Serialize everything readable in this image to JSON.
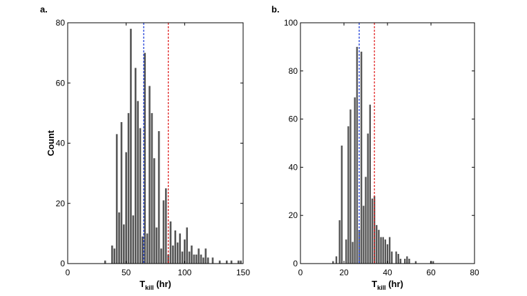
{
  "chart_data": [
    {
      "type": "bar",
      "panel_label": "a.",
      "xlabel_main": "T",
      "xlabel_sub": "kill",
      "xlabel_unit": " (hr)",
      "ylabel": "Count",
      "xlim": [
        0,
        150
      ],
      "ylim": [
        0,
        80
      ],
      "xticks": [
        0,
        50,
        100,
        150
      ],
      "yticks": [
        0,
        20,
        40,
        60,
        80
      ],
      "bar_color": "#555555",
      "grid": false,
      "x": [
        32,
        38,
        40,
        42,
        44,
        46,
        48,
        50,
        52,
        54,
        56,
        58,
        60,
        62,
        64,
        66,
        68,
        70,
        72,
        74,
        76,
        78,
        80,
        82,
        84,
        86,
        88,
        90,
        92,
        94,
        96,
        98,
        100,
        102,
        104,
        106,
        108,
        110,
        112,
        114,
        116,
        118,
        120,
        124,
        130,
        136,
        140,
        146,
        148
      ],
      "values": [
        1,
        6,
        5,
        43,
        17,
        47,
        13,
        37,
        50,
        78,
        16,
        65,
        54,
        45,
        9,
        70,
        10,
        59,
        50,
        35,
        12,
        44,
        5,
        21,
        25,
        3,
        14,
        6,
        11,
        7,
        10,
        4,
        8,
        12,
        4,
        6,
        3,
        3,
        5,
        3,
        2,
        5,
        2,
        2,
        1,
        1,
        1,
        1,
        1
      ],
      "reference_lines": [
        {
          "x": 65,
          "color": "#1f3fd8"
        },
        {
          "x": 86,
          "color": "#e02020"
        }
      ]
    },
    {
      "type": "bar",
      "panel_label": "b.",
      "xlabel_main": "T",
      "xlabel_sub": "kill",
      "xlabel_unit": " (hr)",
      "ylabel": "",
      "xlim": [
        0,
        80
      ],
      "ylim": [
        0,
        100
      ],
      "xticks": [
        0,
        20,
        40,
        60,
        80
      ],
      "yticks": [
        0,
        20,
        40,
        60,
        80,
        100
      ],
      "bar_color": "#555555",
      "grid": false,
      "x": [
        15,
        16.5,
        18,
        19,
        21,
        22,
        23,
        24,
        25,
        26,
        27,
        28,
        29,
        30,
        31,
        32,
        33,
        34,
        35,
        36,
        37,
        38,
        39,
        40,
        41,
        42,
        44,
        45,
        46,
        48,
        49,
        50,
        53,
        60,
        61
      ],
      "values": [
        1,
        3,
        18,
        49,
        10,
        57,
        64,
        9,
        69,
        90,
        14,
        88,
        24,
        36,
        54,
        66,
        27,
        28,
        16,
        14,
        11,
        11,
        10,
        8,
        11,
        5,
        5,
        4,
        2,
        2,
        3,
        2,
        1,
        1,
        1
      ],
      "reference_lines": [
        {
          "x": 27,
          "color": "#1f3fd8"
        },
        {
          "x": 34,
          "color": "#e02020"
        }
      ]
    }
  ]
}
